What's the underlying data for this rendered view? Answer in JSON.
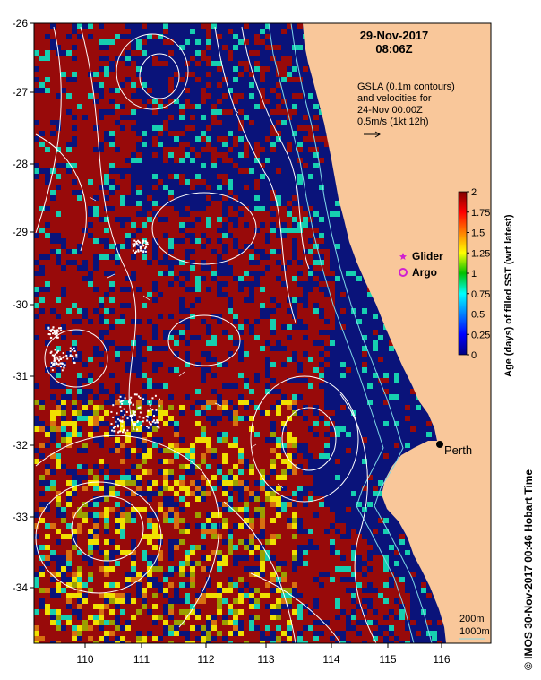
{
  "map": {
    "date_line1": "29-Nov-2017",
    "date_line2": "08:06Z",
    "gsla_note": [
      "GSLA (0.1m contours)",
      "and velocities for",
      "24-Nov 00:00Z",
      "0.5m/s (1kt 12h)"
    ],
    "legend_items": [
      {
        "label": "Glider",
        "color": "#d020d0",
        "symbol": "star"
      },
      {
        "label": "Argo",
        "color": "#d020d0",
        "symbol": "circle"
      }
    ],
    "city_label": "Perth",
    "depth_labels": [
      "200m",
      "1000m"
    ],
    "credit": "IMOS 30-Nov-2017 00:46 Hobart Time",
    "copyright_symbol": "©",
    "lon_ticks": [
      "110",
      "111",
      "112",
      "113",
      "114",
      "115",
      "116"
    ],
    "lat_ticks": [
      "-26",
      "-27",
      "-28",
      "-29",
      "-30",
      "-31",
      "-32",
      "-33",
      "-34"
    ],
    "colors": {
      "land": "#f9c79a",
      "sst_recent": "#0a137a",
      "sst_old": "#980a0a",
      "sst_mid": "#16cfb0",
      "contours": "#ffffff",
      "isobath": "#7fd8e8"
    },
    "colorbar": {
      "title": "Age (days) of filled SST (wrt latest)",
      "ticks": [
        "2",
        "1.75",
        "1.5",
        "1.25",
        "1",
        "0.75",
        "0.5",
        "0.25",
        "0"
      ],
      "min": 0,
      "max": 2,
      "colors": [
        "#00007f",
        "#0000ff",
        "#0080ff",
        "#00ffff",
        "#00c000",
        "#ffff00",
        "#ff8000",
        "#ff0000",
        "#7f0000"
      ]
    }
  }
}
